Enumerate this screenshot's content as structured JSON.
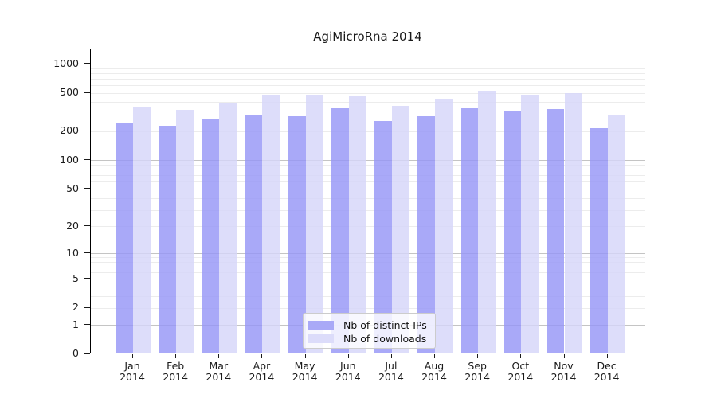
{
  "title": "AgiMicroRna 2014",
  "chart_data": {
    "type": "bar",
    "title": "AgiMicroRna 2014",
    "months": [
      "Jan",
      "Feb",
      "Mar",
      "Apr",
      "May",
      "Jun",
      "Jul",
      "Aug",
      "Sep",
      "Oct",
      "Nov",
      "Dec"
    ],
    "year_label": "2014",
    "series": [
      {
        "name": "Nb of distinct IPs",
        "key": "distinct-ips",
        "color": "rgba(150,150,246,0.82)",
        "swatch": "#a9a9f7",
        "values": [
          232,
          220,
          256,
          284,
          275,
          335,
          249,
          278,
          335,
          315,
          330,
          209
        ]
      },
      {
        "name": "Nb of downloads",
        "key": "downloads",
        "color": "rgba(213,213,249,0.82)",
        "swatch": "#dcdcfa",
        "values": [
          345,
          322,
          377,
          462,
          460,
          446,
          356,
          424,
          505,
          463,
          480,
          287
        ]
      }
    ],
    "y_ticks": [
      1000,
      500,
      200,
      100,
      50,
      20,
      10,
      5,
      2,
      1,
      0
    ],
    "y_scale": "log1p",
    "ylim": [
      0,
      1410
    ],
    "grid": true,
    "legend_position": "inside-bottom-center",
    "colors": {
      "grid_minor": "#ececec",
      "grid_major": "#c4c4c4",
      "axis": "#000000",
      "text": "#1a1a1a"
    }
  }
}
